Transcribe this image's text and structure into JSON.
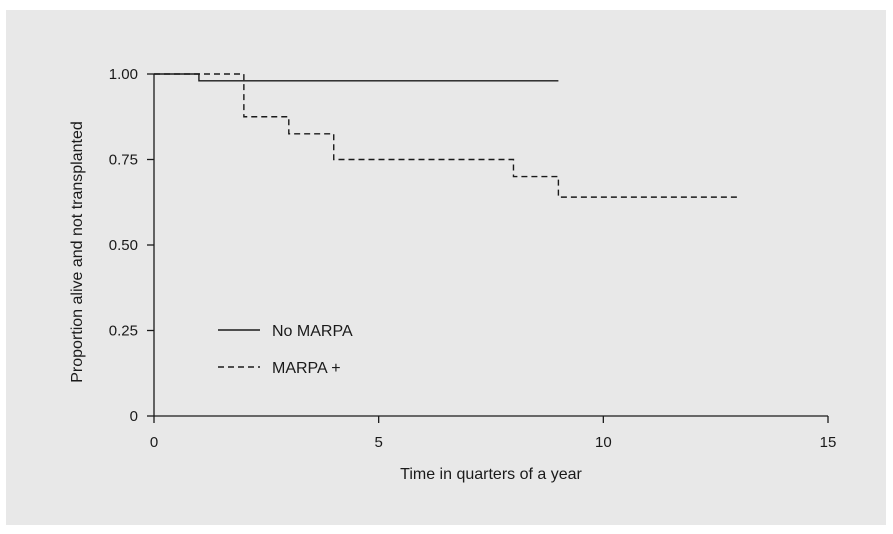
{
  "chart_data": {
    "type": "line",
    "title": "",
    "xlabel": "Time in quarters of a year",
    "ylabel": "Proportion alive and not transplanted",
    "xlim": [
      0,
      15
    ],
    "ylim": [
      0,
      1
    ],
    "xticks": [
      0,
      5,
      10,
      15
    ],
    "xtick_labels": [
      "0",
      "5",
      "10",
      "15"
    ],
    "yticks": [
      0,
      0.25,
      0.5,
      0.75,
      1.0
    ],
    "ytick_labels": [
      "0",
      "0.25",
      "0.50",
      "0.75",
      "1.00"
    ],
    "grid": false,
    "legend_position": "lower-left",
    "step": true,
    "series": [
      {
        "name": "No MARPA",
        "style": "solid",
        "color": "#1a1a1a",
        "x": [
          0,
          1,
          9
        ],
        "y": [
          1.0,
          0.98,
          0.98
        ]
      },
      {
        "name": "MARPA +",
        "style": "dashed",
        "color": "#1a1a1a",
        "x": [
          0,
          2,
          3,
          4,
          8,
          9,
          13
        ],
        "y": [
          1.0,
          0.875,
          0.825,
          0.75,
          0.7,
          0.64,
          0.64
        ]
      }
    ]
  }
}
